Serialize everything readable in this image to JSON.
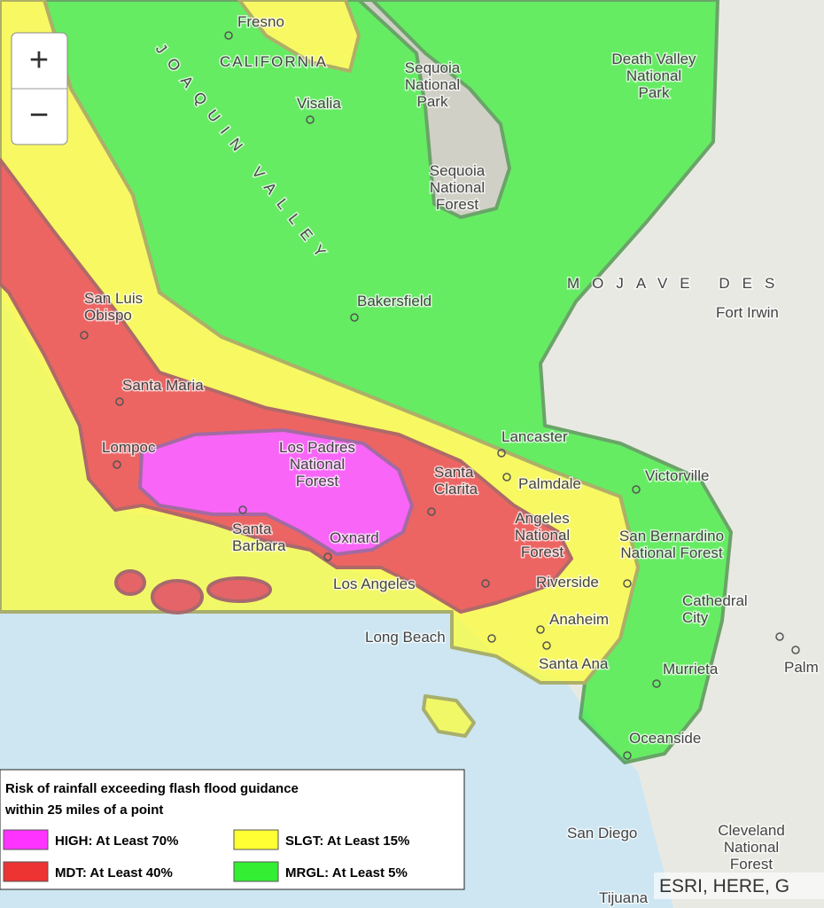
{
  "zoom": {
    "in": "+",
    "out": "−"
  },
  "places": [
    {
      "lines": [
        "Fresno"
      ]
    },
    {
      "lines": [
        "CALIFORNIA"
      ]
    },
    {
      "lines": [
        "JOAQUIN VALLEY"
      ]
    },
    {
      "lines": [
        "Visalia"
      ]
    },
    {
      "lines": [
        "Sequoia",
        "National",
        "Park"
      ]
    },
    {
      "lines": [
        "Death Valley",
        "National",
        "Park"
      ]
    },
    {
      "lines": [
        "Sequoia",
        "National",
        "Forest"
      ]
    },
    {
      "lines": [
        "Bakersfield"
      ]
    },
    {
      "lines": [
        "MOJAVE DES"
      ]
    },
    {
      "lines": [
        "Fort Irwin"
      ]
    },
    {
      "lines": [
        "San Luis",
        "Obispo"
      ]
    },
    {
      "lines": [
        "Santa Maria"
      ]
    },
    {
      "lines": [
        "Lompoc"
      ]
    },
    {
      "lines": [
        "Los Padres",
        "National",
        "Forest"
      ]
    },
    {
      "lines": [
        "Lancaster"
      ]
    },
    {
      "lines": [
        "Santa",
        "Clarita"
      ]
    },
    {
      "lines": [
        "Palmdale"
      ]
    },
    {
      "lines": [
        "Victorville"
      ]
    },
    {
      "lines": [
        "Santa",
        "Barbara"
      ]
    },
    {
      "lines": [
        "Oxnard"
      ]
    },
    {
      "lines": [
        "Los Angeles"
      ]
    },
    {
      "lines": [
        "Angeles",
        "National",
        "Forest"
      ]
    },
    {
      "lines": [
        "San Bernardino",
        "National Forest"
      ]
    },
    {
      "lines": [
        "Riverside"
      ]
    },
    {
      "lines": [
        "Cathedral",
        "City"
      ]
    },
    {
      "lines": [
        "Long Beach"
      ]
    },
    {
      "lines": [
        "Anaheim"
      ]
    },
    {
      "lines": [
        "Santa Ana"
      ]
    },
    {
      "lines": [
        "Murrieta"
      ]
    },
    {
      "lines": [
        "Palm"
      ]
    },
    {
      "lines": [
        "Oceanside"
      ]
    },
    {
      "lines": [
        "San Diego"
      ]
    },
    {
      "lines": [
        "Cleveland",
        "National",
        "Forest"
      ]
    },
    {
      "lines": [
        "Tijuana"
      ]
    }
  ],
  "legend": {
    "title": [
      "Risk of rainfall exceeding flash flood guidance",
      "within 25 miles of a point"
    ],
    "items": [
      {
        "label": "HIGH: At Least 70%",
        "color": "#ff33ff"
      },
      {
        "label": "SLGT: At Least 15%",
        "color": "#ffff33"
      },
      {
        "label": "MDT: At Least 40%",
        "color": "#ee3333"
      },
      {
        "label": "MRGL: At Least 5%",
        "color": "#33ee33"
      }
    ]
  },
  "attribution": "ESRI, HERE, G"
}
